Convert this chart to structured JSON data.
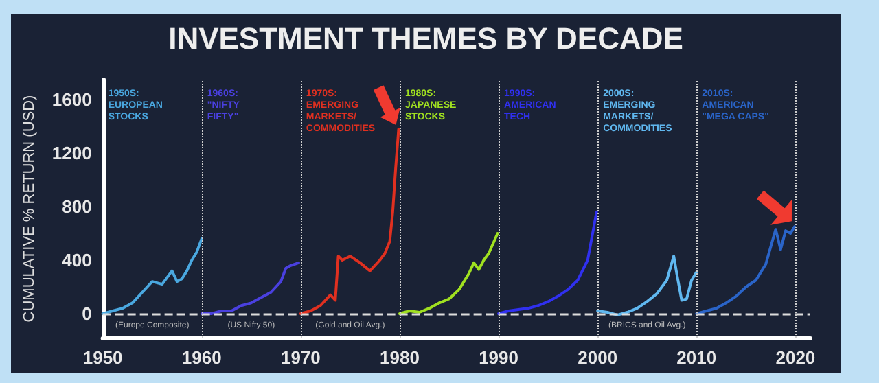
{
  "chart_data": {
    "type": "line",
    "title": "INVESTMENT THEMES BY DECADE",
    "ylabel": "CUMULATIVE % RETURN (USD)",
    "xlim": [
      1950,
      2021.5
    ],
    "xticks": [
      1950,
      1960,
      1970,
      1980,
      1990,
      2000,
      2010,
      2020
    ],
    "ylim": [
      -180,
      1750
    ],
    "yticks": [
      0,
      400,
      800,
      1200,
      1600
    ],
    "grid": false,
    "legend": false,
    "marker": "none",
    "line_style": "solid",
    "series": [
      {
        "name": "1950S:\nEUROPEAN\nSTOCKS",
        "color": "#4aa8e0",
        "x": [
          1950,
          1951,
          1952,
          1953,
          1954,
          1955,
          1956,
          1957,
          1957.5,
          1958,
          1958.5,
          1959,
          1959.5,
          1960
        ],
        "values": [
          0,
          20,
          40,
          80,
          160,
          240,
          220,
          320,
          240,
          260,
          320,
          400,
          460,
          560
        ]
      },
      {
        "name": "1960S:\n\"NIFTY\nFIFTY\"",
        "color": "#4a40e0",
        "x": [
          1960,
          1961,
          1962,
          1963,
          1964,
          1965,
          1966,
          1967,
          1968,
          1968.5,
          1969,
          1969.8
        ],
        "values": [
          0,
          0,
          20,
          20,
          60,
          80,
          120,
          160,
          240,
          340,
          360,
          380
        ]
      },
      {
        "name": "1970S:\nEMERGING\nMARKETS/\nCOMMODITIES",
        "color": "#e03020",
        "x": [
          1970,
          1971,
          1972,
          1973,
          1973.5,
          1973.8,
          1974.2,
          1975,
          1976,
          1977,
          1978,
          1978.5,
          1979,
          1979.3,
          1979.6,
          1979.9
        ],
        "values": [
          0,
          20,
          60,
          140,
          100,
          430,
          400,
          430,
          380,
          320,
          400,
          450,
          540,
          760,
          1090,
          1380
        ]
      },
      {
        "name": "1980S:\nJAPANESE\nSTOCKS",
        "color": "#a0e020",
        "x": [
          1980,
          1981,
          1982,
          1983,
          1984,
          1985,
          1986,
          1987,
          1987.5,
          1988,
          1988.5,
          1989,
          1989.9
        ],
        "values": [
          0,
          20,
          10,
          40,
          80,
          110,
          180,
          300,
          380,
          330,
          400,
          450,
          600
        ]
      },
      {
        "name": "1990S:\nAMERICAN\nTECH",
        "color": "#3030f0",
        "x": [
          1990,
          1991,
          1992,
          1993,
          1994,
          1995,
          1996,
          1997,
          1998,
          1999,
          1999.5,
          1999.9
        ],
        "values": [
          0,
          20,
          30,
          40,
          60,
          90,
          130,
          180,
          250,
          400,
          600,
          760
        ]
      },
      {
        "name": "2000S:\nEMERGING\nMARKETS/\nCOMMODITIES",
        "color": "#60b8f0",
        "x": [
          2000,
          2001,
          2002,
          2003,
          2004,
          2005,
          2006,
          2007,
          2007.7,
          2008,
          2008.5,
          2009,
          2009.5,
          2010
        ],
        "values": [
          20,
          10,
          -10,
          10,
          40,
          90,
          150,
          250,
          430,
          300,
          100,
          110,
          250,
          310
        ]
      },
      {
        "name": "2010S:\nAMERICAN\n\"MEGA CAPS\"",
        "color": "#2a64c8",
        "x": [
          2010,
          2011,
          2012,
          2013,
          2014,
          2015,
          2016,
          2017,
          2018,
          2018.5,
          2019,
          2019.5,
          2019.9
        ],
        "values": [
          0,
          20,
          40,
          80,
          130,
          200,
          250,
          370,
          630,
          480,
          620,
          600,
          650
        ]
      }
    ],
    "annotations": [
      {
        "text": "(Europe Composite)",
        "x": 1955,
        "y": 0
      },
      {
        "text": "(US Nifty 50)",
        "x": 1965,
        "y": 0
      },
      {
        "text": "(Gold and Oil Avg.)",
        "x": 1975,
        "y": 0
      },
      {
        "text": "(BRICS and Oil Avg.)",
        "x": 2005,
        "y": 0
      }
    ],
    "ref_lines": [
      {
        "axis": "y",
        "value": 0,
        "line_style": "dashed",
        "color": "#dddddd"
      },
      {
        "axis": "x",
        "value": 1960,
        "line_style": "dotted",
        "color": "#cccccc"
      },
      {
        "axis": "x",
        "value": 1970,
        "line_style": "dotted",
        "color": "#cccccc"
      },
      {
        "axis": "x",
        "value": 1980,
        "line_style": "dotted",
        "color": "#cccccc"
      },
      {
        "axis": "x",
        "value": 1990,
        "line_style": "dotted",
        "color": "#cccccc"
      },
      {
        "axis": "x",
        "value": 2000,
        "line_style": "dotted",
        "color": "#cccccc"
      },
      {
        "axis": "x",
        "value": 2010,
        "line_style": "dotted",
        "color": "#cccccc"
      },
      {
        "axis": "x",
        "value": 2020,
        "line_style": "dotted",
        "color": "#cccccc"
      }
    ]
  }
}
